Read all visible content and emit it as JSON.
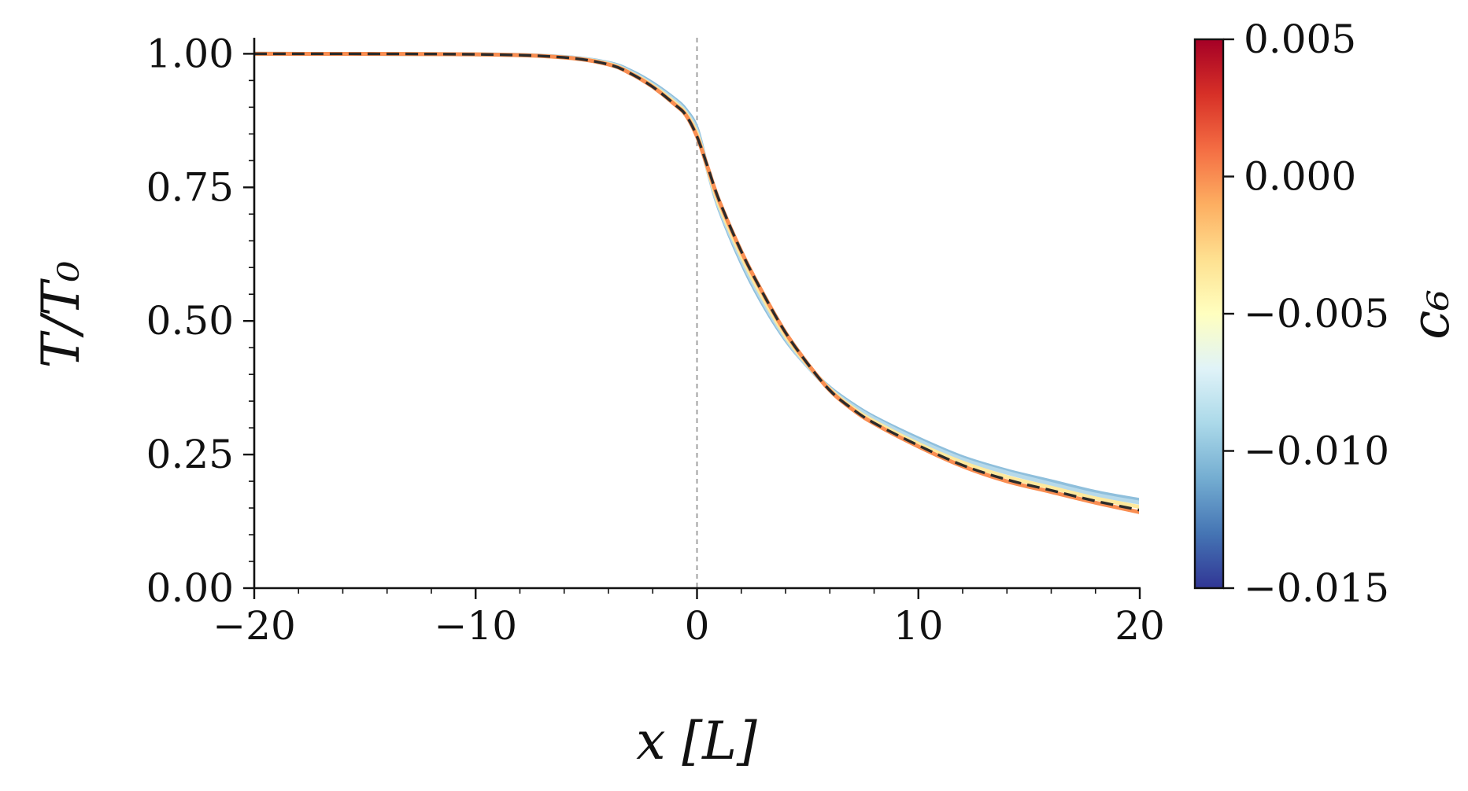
{
  "chart_data": {
    "type": "line",
    "xlabel": "x [L]",
    "ylabel": "T/T₀",
    "xlim": [
      -20,
      20
    ],
    "ylim": [
      0,
      1.03
    ],
    "xticks": [
      -20,
      -10,
      0,
      10,
      20
    ],
    "xtick_labels": [
      "−20",
      "−10",
      "0",
      "10",
      "20"
    ],
    "yticks": [
      0.0,
      0.25,
      0.5,
      0.75,
      1.0
    ],
    "ytick_labels": [
      "0.00",
      "0.25",
      "0.50",
      "0.75",
      "1.00"
    ],
    "vline_x": 0,
    "colorbar": {
      "label": "c₆",
      "range": [
        -0.015,
        0.005
      ],
      "colormap": "RdYlBu_r",
      "ticks": [
        -0.015,
        -0.01,
        -0.005,
        0.0,
        0.005
      ],
      "tick_labels": [
        "−0.015",
        "−0.010",
        "−0.005",
        "0.000",
        "0.005"
      ]
    },
    "series": [
      {
        "c6": -0.01,
        "color": "#8fbfdc",
        "style": "solid",
        "x": [
          -20,
          -10,
          -6,
          -4,
          -3,
          -2,
          -1,
          -0.5,
          0,
          0.5,
          1,
          2,
          3,
          4,
          5,
          6,
          7,
          8,
          10,
          12,
          14,
          16,
          18,
          20
        ],
        "y": [
          1.0,
          0.999,
          0.994,
          0.983,
          0.968,
          0.945,
          0.915,
          0.895,
          0.86,
          0.78,
          0.71,
          0.61,
          0.53,
          0.465,
          0.415,
          0.375,
          0.345,
          0.32,
          0.28,
          0.245,
          0.22,
          0.2,
          0.18,
          0.165
        ]
      },
      {
        "c6": -0.008,
        "color": "#b6d9ea",
        "style": "solid",
        "x": [
          -20,
          -10,
          -6,
          -4,
          -3,
          -2,
          -1,
          -0.5,
          0,
          0.5,
          1,
          2,
          3,
          4,
          5,
          6,
          7,
          8,
          10,
          12,
          14,
          16,
          18,
          20
        ],
        "y": [
          1.0,
          0.999,
          0.994,
          0.982,
          0.966,
          0.942,
          0.912,
          0.891,
          0.855,
          0.78,
          0.713,
          0.615,
          0.535,
          0.468,
          0.415,
          0.373,
          0.342,
          0.317,
          0.276,
          0.241,
          0.216,
          0.195,
          0.175,
          0.16
        ]
      },
      {
        "c6": -0.004,
        "color": "#fee99d",
        "style": "solid",
        "x": [
          -20,
          -10,
          -6,
          -4,
          -3,
          -2,
          -1,
          -0.5,
          0,
          0.5,
          1,
          2,
          3,
          4,
          5,
          6,
          7,
          8,
          10,
          12,
          14,
          16,
          18,
          20
        ],
        "y": [
          1.0,
          0.999,
          0.993,
          0.981,
          0.964,
          0.94,
          0.908,
          0.888,
          0.85,
          0.782,
          0.718,
          0.622,
          0.542,
          0.472,
          0.418,
          0.372,
          0.338,
          0.312,
          0.27,
          0.235,
          0.208,
          0.188,
          0.168,
          0.152
        ]
      },
      {
        "c6": 0.0,
        "color": "#f98e52",
        "style": "solid",
        "x": [
          -20,
          -10,
          -6,
          -4,
          -3,
          -2,
          -1,
          -0.5,
          0,
          0.5,
          1,
          2,
          3,
          4,
          5,
          6,
          7,
          8,
          10,
          12,
          14,
          16,
          18,
          20
        ],
        "y": [
          1.0,
          0.999,
          0.993,
          0.98,
          0.963,
          0.938,
          0.905,
          0.885,
          0.845,
          0.785,
          0.725,
          0.63,
          0.55,
          0.478,
          0.42,
          0.37,
          0.335,
          0.308,
          0.265,
          0.228,
          0.2,
          0.18,
          0.16,
          0.142
        ]
      },
      {
        "c6": null,
        "color": "#2b2b2b",
        "style": "dashed",
        "x": [
          -20,
          -10,
          -6,
          -4,
          -3,
          -2,
          -1,
          -0.5,
          0,
          0.5,
          1,
          2,
          3,
          4,
          5,
          6,
          7,
          8,
          10,
          12,
          14,
          16,
          18,
          20
        ],
        "y": [
          1.0,
          0.999,
          0.993,
          0.98,
          0.963,
          0.938,
          0.905,
          0.885,
          0.845,
          0.786,
          0.726,
          0.63,
          0.55,
          0.478,
          0.42,
          0.37,
          0.336,
          0.309,
          0.267,
          0.23,
          0.203,
          0.183,
          0.163,
          0.146
        ]
      }
    ]
  }
}
